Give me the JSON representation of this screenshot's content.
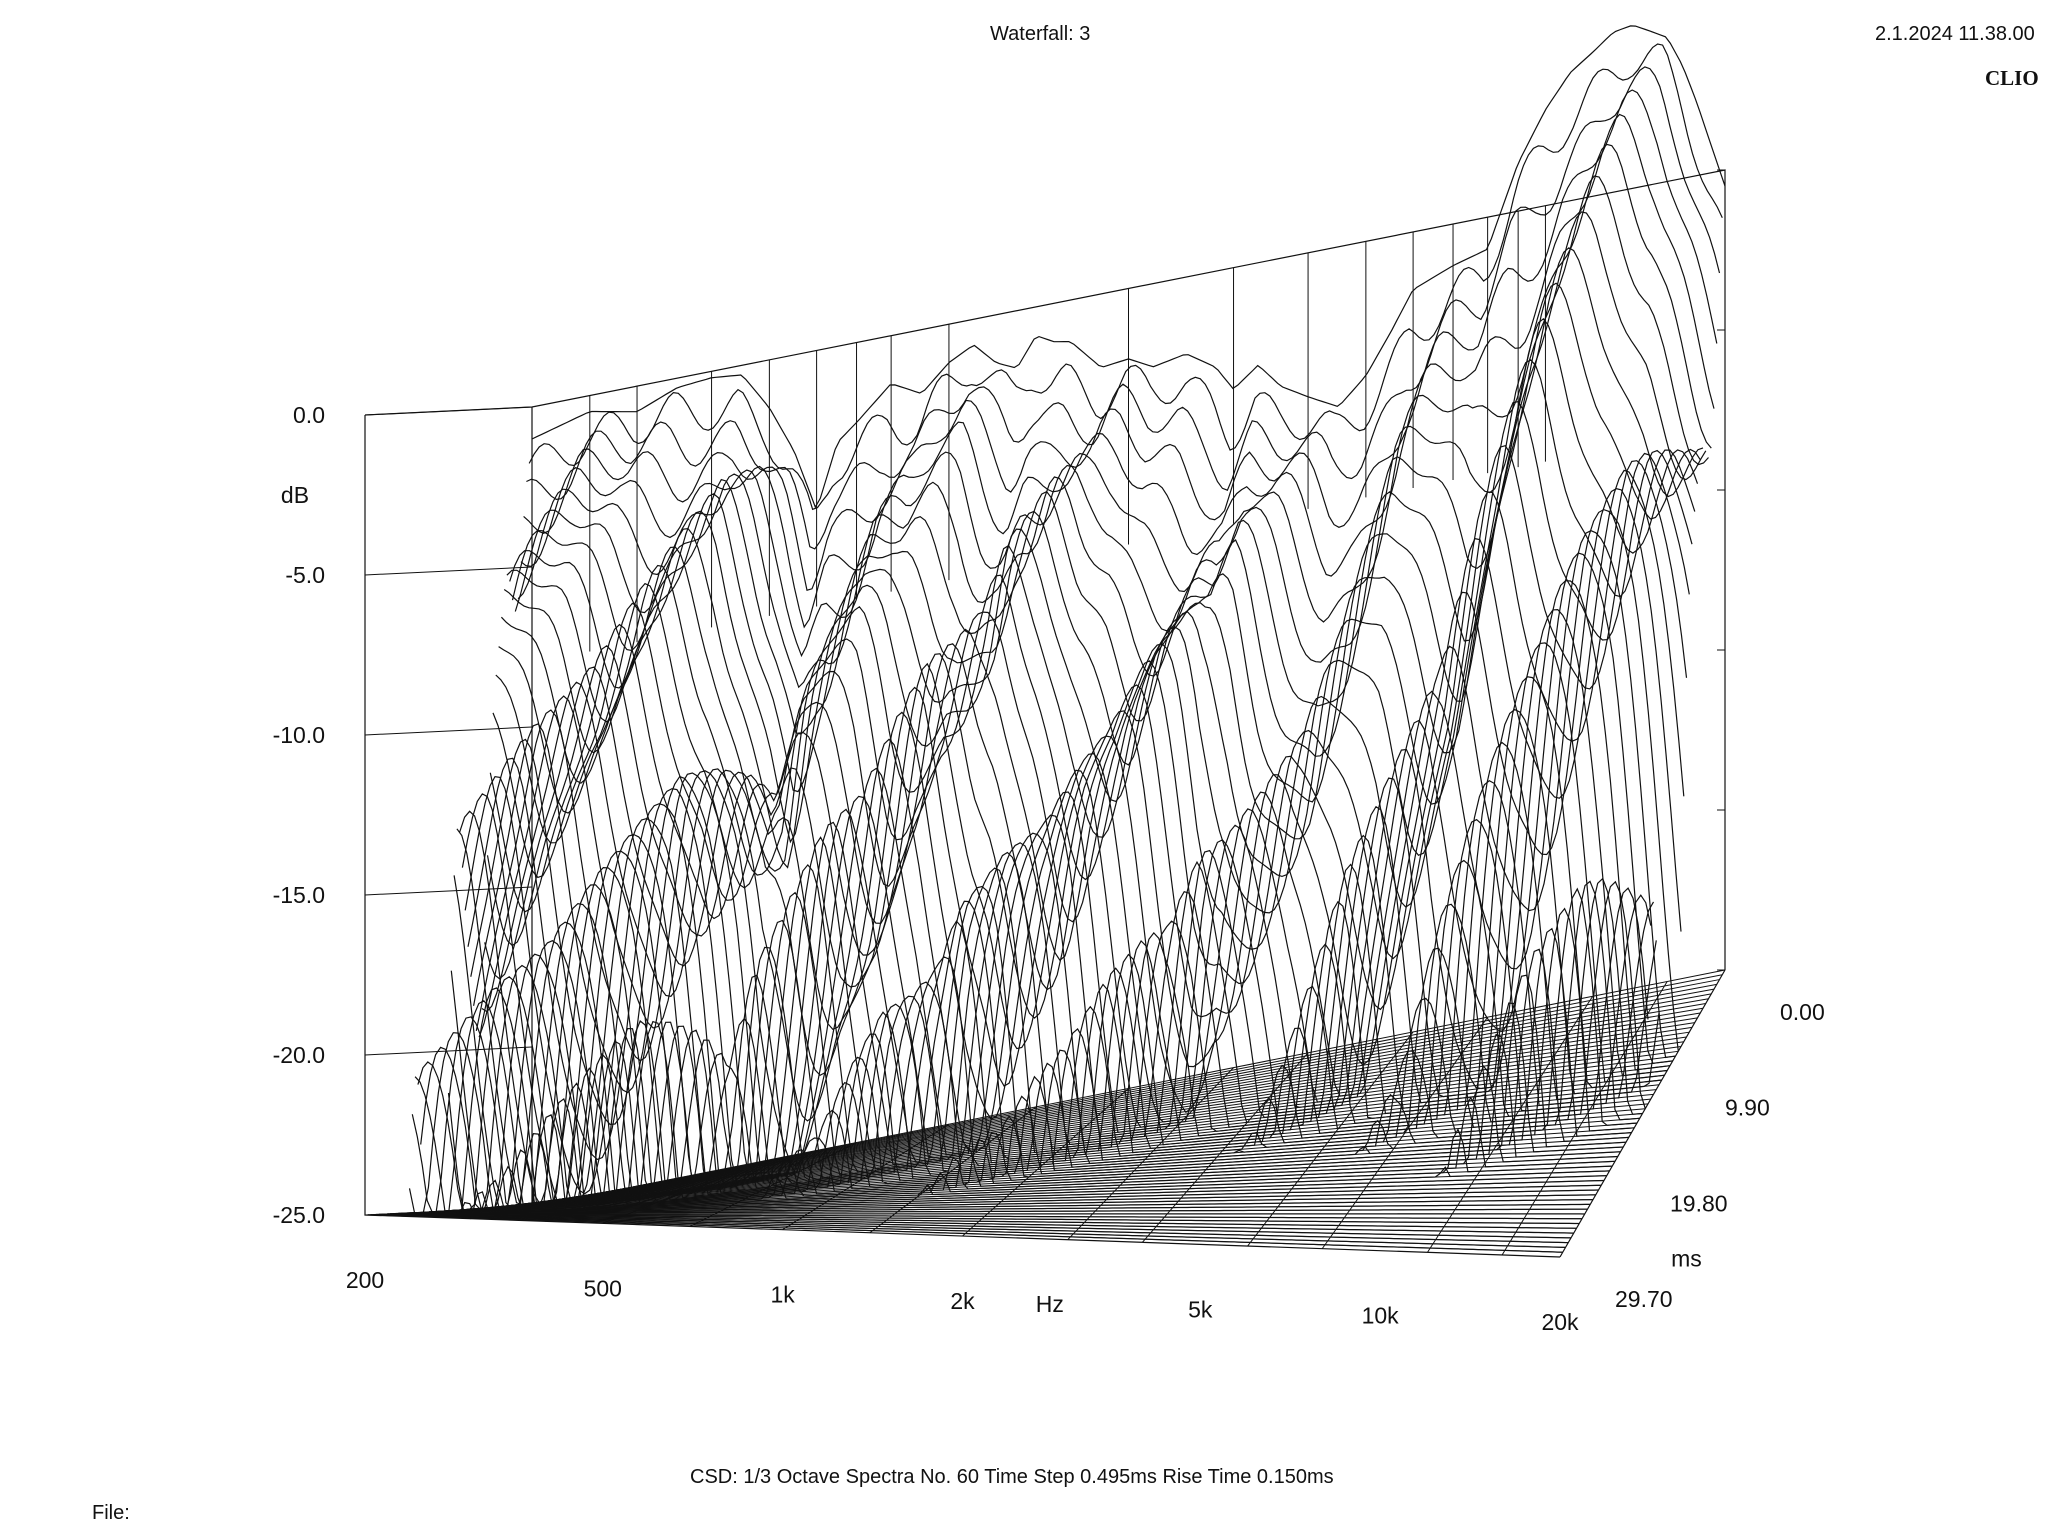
{
  "header": {
    "title": "Waterfall: 3",
    "timestamp": "2.1.2024 11.38.00",
    "brand": "CLIO"
  },
  "footer": {
    "settings": "CSD:   1/3 Octave   Spectra No. 60   Time Step 0.495ms   Rise Time 0.150ms",
    "file_label": "File:"
  },
  "colors": {
    "line": "#111111",
    "background": "#ffffff"
  },
  "chart_data": {
    "type": "waterfall",
    "title": "Waterfall: 3",
    "x_axis": {
      "label": "Hz",
      "scale": "log",
      "range": [
        200,
        20000
      ],
      "ticks": [
        {
          "value": 200,
          "label": "200"
        },
        {
          "value": 500,
          "label": "500"
        },
        {
          "value": 1000,
          "label": "1k"
        },
        {
          "value": 2000,
          "label": "2k"
        },
        {
          "value": 5000,
          "label": "5k"
        },
        {
          "value": 10000,
          "label": "10k"
        },
        {
          "value": 20000,
          "label": "20k"
        }
      ]
    },
    "y_axis": {
      "label": "dB",
      "range": [
        -25,
        0
      ],
      "ticks": [
        {
          "value": 0,
          "label": "0.0"
        },
        {
          "value": -5,
          "label": "-5.0"
        },
        {
          "value": -10,
          "label": "-10.0"
        },
        {
          "value": -15,
          "label": "-15.0"
        },
        {
          "value": -20,
          "label": "-20.0"
        },
        {
          "value": -25,
          "label": "-25.0"
        }
      ]
    },
    "z_axis": {
      "label": "ms",
      "range": [
        0,
        29.7
      ],
      "ticks": [
        {
          "value": 0,
          "label": "0.00"
        },
        {
          "value": 9.9,
          "label": "9.90"
        },
        {
          "value": 19.8,
          "label": "19.80"
        },
        {
          "value": 29.7,
          "label": "29.70"
        }
      ]
    },
    "spectra_count": 60,
    "time_step_ms": 0.495,
    "rise_time_ms": 0.15,
    "smoothing": "1/3 Octave",
    "first_spectrum": {
      "freq_hz": [
        200,
        250,
        300,
        350,
        400,
        450,
        500,
        550,
        600,
        650,
        700,
        800,
        900,
        1000,
        1100,
        1200,
        1300,
        1400,
        1500,
        1600,
        1800,
        2000,
        2200,
        2500,
        2800,
        3000,
        3300,
        3600,
        4000,
        4500,
        5000,
        5500,
        6000,
        7000,
        8000,
        9000,
        10000,
        11000,
        12000,
        13000,
        14000,
        15000,
        16000,
        17000,
        18000,
        19000,
        20000
      ],
      "db": [
        -1.0,
        -0.5,
        -0.8,
        -0.3,
        -0.2,
        -0.3,
        -1.5,
        -3.0,
        -5.0,
        -3.0,
        -2.5,
        -1.5,
        -2.0,
        -1.2,
        -0.8,
        -1.5,
        -1.8,
        -0.9,
        -1.2,
        -1.3,
        -2.3,
        -2.2,
        -2.6,
        -2.4,
        -3.0,
        -3.8,
        -3.2,
        -4.0,
        -4.5,
        -5.0,
        -4.2,
        -3.0,
        -1.8,
        -1.3,
        -1.0,
        1.5,
        3.0,
        4.0,
        4.5,
        5.0,
        5.1,
        4.8,
        4.5,
        3.5,
        2.2,
        0.8,
        -0.5
      ]
    }
  }
}
